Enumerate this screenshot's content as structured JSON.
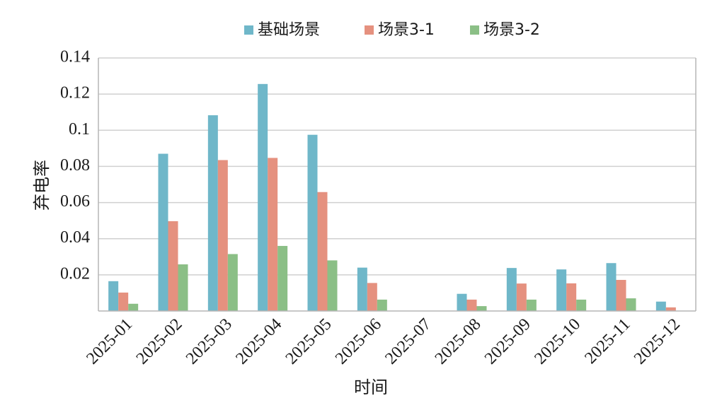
{
  "chart_data": {
    "type": "bar",
    "xlabel": "时间",
    "ylabel": "弃电率",
    "categories": [
      "2025-01",
      "2025-02",
      "2025-03",
      "2025-04",
      "2025-05",
      "2025-06",
      "2025-07",
      "2025-08",
      "2025-09",
      "2025-10",
      "2025-11",
      "2025-12"
    ],
    "series": [
      {
        "name": "基础场景",
        "color": "#6fb7c9",
        "values": [
          0.0165,
          0.087,
          0.1083,
          0.1256,
          0.0975,
          0.024,
          0,
          0.0095,
          0.0238,
          0.023,
          0.0265,
          0.0052
        ]
      },
      {
        "name": "场景3-1",
        "color": "#e5917f",
        "values": [
          0.0102,
          0.0497,
          0.0835,
          0.0847,
          0.0658,
          0.0155,
          0,
          0.0063,
          0.0152,
          0.0153,
          0.0172,
          0.002
        ]
      },
      {
        "name": "场景3-2",
        "color": "#8bbf86",
        "values": [
          0.004,
          0.0258,
          0.0315,
          0.036,
          0.028,
          0.0063,
          0,
          0.0027,
          0.0063,
          0.0063,
          0.007,
          0
        ]
      }
    ],
    "ylim": [
      0,
      0.14
    ],
    "yticks": [
      "0.02",
      "0.04",
      "0.06",
      "0.08",
      "0.1",
      "0.12",
      "0.14"
    ],
    "grid": true,
    "legend_position": "top"
  }
}
